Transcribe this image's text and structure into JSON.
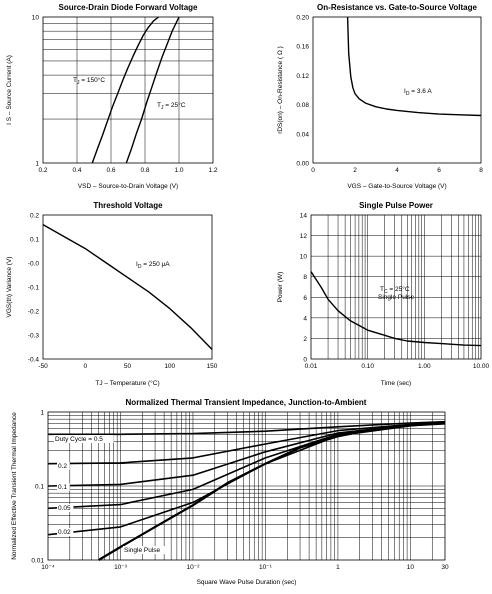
{
  "chart_data": [
    {
      "id": "c1",
      "type": "line",
      "title": "Source-Drain Diode Forward Voltage",
      "xlabel": "VSD  –  Source-to-Drain Voltage (V)",
      "ylabel": "I S  –  Source Current (A)",
      "xlim": [
        0.2,
        1.2
      ],
      "ylim": [
        1,
        10
      ],
      "yscale": "log",
      "xticks": [
        "0.2",
        "0.4",
        "0.6",
        "0.8",
        "1.0",
        "1.2"
      ],
      "yticks": [
        "10",
        "1"
      ],
      "grid": true,
      "series": [
        {
          "name": "TJ = 150°C",
          "x": [
            0.49,
            0.52,
            0.55,
            0.58,
            0.61,
            0.64,
            0.67,
            0.7,
            0.73,
            0.76,
            0.79,
            0.82,
            0.85,
            0.88
          ],
          "y": [
            1.0,
            1.25,
            1.55,
            1.95,
            2.45,
            3.0,
            3.7,
            4.5,
            5.4,
            6.4,
            7.5,
            8.5,
            9.4,
            10.0
          ]
        },
        {
          "name": "TJ = 25°C",
          "x": [
            0.69,
            0.72,
            0.75,
            0.78,
            0.81,
            0.84,
            0.87,
            0.9,
            0.93,
            0.96,
            1.0
          ],
          "y": [
            1.0,
            1.25,
            1.6,
            2.0,
            2.6,
            3.3,
            4.2,
            5.3,
            6.5,
            8.0,
            10.0
          ]
        }
      ],
      "annotations": [
        {
          "sym": "T",
          "sub": "J",
          "rest": " = 150°C"
        },
        {
          "sym": "T",
          "sub": "J",
          "rest": " = 25°C"
        }
      ]
    },
    {
      "id": "c2",
      "type": "line",
      "title": "On-Resistance vs. Gate-to-Source Voltage",
      "xlabel": "VGS  –  Gate-to-Source Voltage (V)",
      "ylabel": "rDS(on)  –  On-Resistance ( Ω )",
      "xlim": [
        0,
        8
      ],
      "ylim": [
        0,
        0.2
      ],
      "xticks": [
        "0",
        "2",
        "4",
        "6",
        "8"
      ],
      "yticks": [
        "0.20",
        "0.16",
        "0.12",
        "0.08",
        "0.04",
        "0.00"
      ],
      "grid": false,
      "series": [
        {
          "name": "ID = 3.6 A",
          "x": [
            1.65,
            1.7,
            1.8,
            1.9,
            2.0,
            2.2,
            2.5,
            3.0,
            3.5,
            4.0,
            5.0,
            6.0,
            7.0,
            8.0
          ],
          "y": [
            0.2,
            0.15,
            0.118,
            0.103,
            0.095,
            0.088,
            0.082,
            0.077,
            0.074,
            0.072,
            0.069,
            0.067,
            0.066,
            0.065
          ]
        }
      ],
      "annotations": [
        {
          "sym": "I",
          "sub": "D",
          "rest": " = 3.6 A"
        }
      ]
    },
    {
      "id": "c3",
      "type": "line",
      "title": "Threshold Voltage",
      "xlabel": "TJ  –  Temperature (°C)",
      "ylabel": "VGS(th) Variance (V)",
      "xlim": [
        -50,
        150
      ],
      "ylim": [
        -0.4,
        0.2
      ],
      "xticks": [
        "-50",
        "0",
        "50",
        "100",
        "150"
      ],
      "yticks": [
        "0.2",
        "0.1",
        "-0.0",
        "-0.1",
        "-0.2",
        "-0.3",
        "-0.4"
      ],
      "grid": false,
      "series": [
        {
          "name": "ID = 250 μA",
          "x": [
            -50,
            -25,
            0,
            25,
            50,
            75,
            100,
            125,
            150
          ],
          "y": [
            0.16,
            0.11,
            0.06,
            0.0,
            -0.06,
            -0.12,
            -0.19,
            -0.27,
            -0.36
          ]
        }
      ],
      "annotations": [
        {
          "sym": "I",
          "sub": "D",
          "rest": " = 250 μA"
        }
      ]
    },
    {
      "id": "c4",
      "type": "line",
      "title": "Single Pulse Power",
      "xlabel": "Time (sec)",
      "ylabel": "Power  (W)",
      "xlim": [
        0.01,
        10
      ],
      "xscale": "log",
      "ylim": [
        0,
        14
      ],
      "xticks": [
        "0.01",
        "0.10",
        "1.00",
        "10.00"
      ],
      "yticks": [
        "14",
        "12",
        "10",
        "8",
        "6",
        "4",
        "2",
        "0"
      ],
      "grid": true,
      "series": [
        {
          "name": "TC = 25°C Single Pulse",
          "x": [
            0.01,
            0.015,
            0.02,
            0.03,
            0.05,
            0.08,
            0.1,
            0.2,
            0.3,
            0.5,
            1,
            2,
            5,
            10
          ],
          "y": [
            8.5,
            7.0,
            5.8,
            4.7,
            3.7,
            3.1,
            2.8,
            2.3,
            2.0,
            1.75,
            1.6,
            1.5,
            1.35,
            1.3
          ]
        }
      ],
      "annotations": [
        {
          "sym": "T",
          "sub": "C",
          "rest": " = 25°C"
        },
        {
          "text": "Single Pulse"
        }
      ]
    },
    {
      "id": "c5",
      "type": "line",
      "title": "Normalized Thermal Transient Impedance, Junction-to-Ambient",
      "xlabel": "Square Wave Pulse Duration (sec)",
      "ylabel": "Normalized Effective Transient Thermal Impedance",
      "xlim": [
        0.0001,
        30
      ],
      "xscale": "log",
      "ylim": [
        0.01,
        1
      ],
      "yscale": "log",
      "xticks": [
        "10⁻⁴",
        "10⁻³",
        "10⁻²",
        "10⁻¹",
        "1",
        "10",
        "30"
      ],
      "yticks": [
        "1",
        "0.1",
        "0.01"
      ],
      "grid": true,
      "series": [
        {
          "name": "Duty Cycle = 0.5",
          "x": [
            0.0001,
            0.001,
            0.01,
            0.1,
            1,
            10,
            30
          ],
          "y": [
            0.5,
            0.5,
            0.51,
            0.55,
            0.63,
            0.71,
            0.74
          ]
        },
        {
          "name": "0.2",
          "x": [
            0.0001,
            0.001,
            0.01,
            0.1,
            1,
            10,
            30
          ],
          "y": [
            0.2,
            0.205,
            0.24,
            0.37,
            0.56,
            0.68,
            0.72
          ]
        },
        {
          "name": "0.1",
          "x": [
            0.0001,
            0.001,
            0.01,
            0.1,
            1,
            10,
            30
          ],
          "y": [
            0.1,
            0.105,
            0.14,
            0.29,
            0.52,
            0.67,
            0.72
          ]
        },
        {
          "name": "0.05",
          "x": [
            0.0001,
            0.001,
            0.01,
            0.1,
            1,
            10,
            30
          ],
          "y": [
            0.05,
            0.056,
            0.09,
            0.24,
            0.5,
            0.66,
            0.71
          ]
        },
        {
          "name": "0.02",
          "x": [
            0.0001,
            0.001,
            0.01,
            0.1,
            1,
            10,
            30
          ],
          "y": [
            0.022,
            0.028,
            0.06,
            0.2,
            0.48,
            0.65,
            0.71
          ]
        },
        {
          "name": "Single Pulse",
          "x": [
            0.0005,
            0.001,
            0.003,
            0.01,
            0.03,
            0.1,
            0.3,
            1,
            3,
            10,
            30
          ],
          "y": [
            0.01,
            0.015,
            0.028,
            0.055,
            0.11,
            0.2,
            0.33,
            0.47,
            0.58,
            0.66,
            0.7
          ]
        }
      ]
    }
  ]
}
